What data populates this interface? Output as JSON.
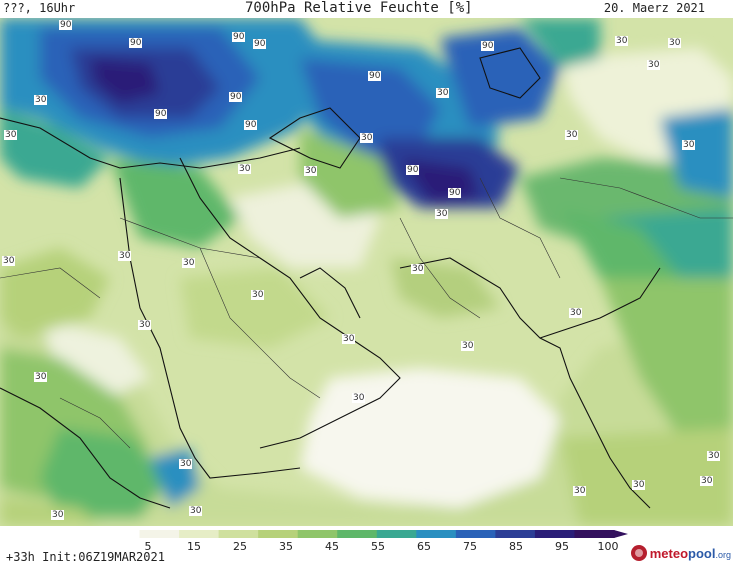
{
  "header": {
    "left": "???, 16Uhr",
    "title": "700hPa Relative Feuchte [%]",
    "right": "20. Maerz 2021"
  },
  "footer": {
    "run_info": "+33h  Init:06Z19MAR2021"
  },
  "logo": {
    "meteo": "meteo",
    "pool": "pool",
    "org": ".org"
  },
  "colorbar": {
    "tick_labels": [
      "5",
      "15",
      "25",
      "35",
      "45",
      "55",
      "65",
      "75",
      "85",
      "95",
      "100"
    ],
    "colors": [
      "#ffffff",
      "#f4f4e8",
      "#e6edc6",
      "#cfe09e",
      "#b6d17a",
      "#8fc56a",
      "#5fb76a",
      "#3aa892",
      "#2a8fc0",
      "#2a62b8",
      "#2c3e96",
      "#2a1e78",
      "#33115e"
    ]
  },
  "map_labels": [
    {
      "text": "90"
    },
    {
      "text": "90"
    },
    {
      "text": "90"
    },
    {
      "text": "90"
    },
    {
      "text": "90"
    },
    {
      "text": "90"
    },
    {
      "text": "90"
    },
    {
      "text": "90"
    },
    {
      "text": "90"
    },
    {
      "text": "90"
    },
    {
      "text": "30"
    },
    {
      "text": "30"
    },
    {
      "text": "30"
    },
    {
      "text": "30"
    },
    {
      "text": "30"
    },
    {
      "text": "30"
    },
    {
      "text": "30"
    },
    {
      "text": "30"
    },
    {
      "text": "30"
    },
    {
      "text": "30"
    },
    {
      "text": "30"
    },
    {
      "text": "30"
    },
    {
      "text": "30"
    },
    {
      "text": "30"
    },
    {
      "text": "30"
    },
    {
      "text": "30"
    },
    {
      "text": "30"
    },
    {
      "text": "30"
    },
    {
      "text": "30"
    },
    {
      "text": "30"
    },
    {
      "text": "30"
    },
    {
      "text": "30"
    },
    {
      "text": "30"
    },
    {
      "text": "30"
    },
    {
      "text": "30"
    },
    {
      "text": "30"
    },
    {
      "text": "30"
    },
    {
      "text": "30"
    }
  ]
}
